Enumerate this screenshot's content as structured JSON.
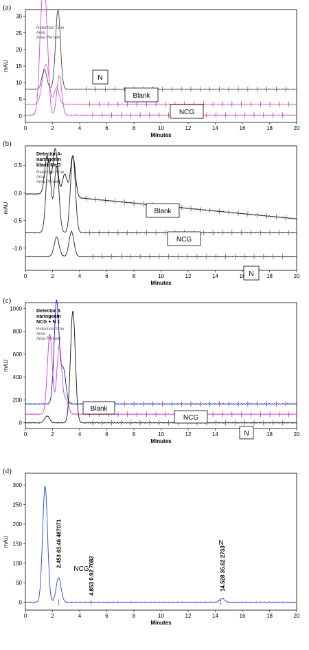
{
  "chart_data": [
    {
      "panel_label": "(a)",
      "type": "line",
      "xlabel": "Minutes",
      "ylabel": "mAU",
      "xlim": [
        0,
        20
      ],
      "ylim": [
        -2,
        32
      ],
      "xticks": [
        0,
        2,
        4,
        6,
        8,
        10,
        12,
        14,
        16,
        18,
        20
      ],
      "yticks": [
        0,
        5,
        10,
        15,
        20,
        25,
        30
      ],
      "legend_lines": [
        "Retention Time",
        "Area",
        "Area Percent"
      ],
      "boxes": [
        "N",
        "Blank",
        "NCG"
      ],
      "series": [
        {
          "name": "N",
          "color": "#444444",
          "baseline": 8,
          "peaks": [
            [
              1.4,
              6
            ],
            [
              2.4,
              24
            ]
          ]
        },
        {
          "name": "Blank",
          "color": "#cc66cc",
          "baseline": 3.5,
          "peaks": [
            [
              1.3,
              6
            ],
            [
              1.6,
              10
            ],
            [
              2.3,
              5
            ]
          ]
        },
        {
          "name": "NCG",
          "color": "#dd44dd",
          "baseline": 0.2,
          "peaks": [
            [
              1.2,
              27
            ],
            [
              1.5,
              28
            ],
            [
              2.5,
              12
            ]
          ]
        }
      ]
    },
    {
      "panel_label": "(b)",
      "type": "line",
      "xlabel": "Minutes",
      "ylabel": "mAU",
      "xlim": [
        0,
        20
      ],
      "ylim": [
        -1.4,
        0.85
      ],
      "xticks": [
        0,
        2,
        4,
        6,
        8,
        10,
        12,
        14,
        16,
        18,
        20
      ],
      "yticks": [
        -1.0,
        -0.5,
        0.0,
        0.5
      ],
      "ytick_labels": [
        "-1.0",
        "-0.5",
        "0.0",
        "0.5"
      ],
      "legend_title": [
        "Detector A-",
        "naringenin",
        "blank MeO"
      ],
      "legend_lines": [
        "Retention Time",
        "Area",
        "Area Percent"
      ],
      "boxes": [
        "Blank",
        "NCG",
        "N"
      ],
      "series": [
        {
          "name": "Blank",
          "color": "#111111",
          "baseline_start": -0.02,
          "baseline_end": -0.47,
          "peaks": [
            [
              1.6,
              0.7
            ],
            [
              2.2,
              0.85
            ],
            [
              2.9,
              0.4
            ],
            [
              3.5,
              0.75
            ]
          ]
        },
        {
          "name": "NCG",
          "color": "#222222",
          "baseline": -0.72,
          "peaks": [
            [
              1.7,
              1.3
            ],
            [
              2.3,
              1.2
            ],
            [
              3.5,
              1.4
            ]
          ]
        },
        {
          "name": "N",
          "color": "#222222",
          "baseline": -1.15,
          "peaks": [
            [
              2.3,
              0.35
            ],
            [
              3.4,
              0.45
            ]
          ]
        }
      ]
    },
    {
      "panel_label": "(c)",
      "type": "line",
      "xlabel": "Minutes",
      "ylabel": "mAU",
      "xlim": [
        0,
        20
      ],
      "ylim": [
        -50,
        1050
      ],
      "xticks": [
        0,
        2,
        4,
        6,
        8,
        10,
        12,
        14,
        16,
        18,
        20
      ],
      "yticks": [
        0,
        200,
        400,
        600,
        800,
        1000
      ],
      "legend_title": [
        "Detector A",
        "naringenin",
        "NCG + N 1"
      ],
      "legend_lines": [
        "Retention Time",
        "Area",
        "Area Percent"
      ],
      "boxes": [
        "Blank",
        "NCG",
        "N"
      ],
      "series": [
        {
          "name": "Blank",
          "color": "#1111cc",
          "baseline": 165,
          "peaks": [
            [
              2.3,
              900
            ],
            [
              2.8,
              300
            ]
          ]
        },
        {
          "name": "NCG",
          "color": "#dd33dd",
          "baseline": 75,
          "peaks": [
            [
              1.8,
              700
            ],
            [
              2.5,
              600
            ],
            [
              3.0,
              120
            ]
          ]
        },
        {
          "name": "N",
          "color": "#111111",
          "baseline": 0,
          "peaks": [
            [
              1.6,
              60
            ],
            [
              3.5,
              980
            ]
          ]
        }
      ]
    },
    {
      "panel_label": "(d)",
      "type": "line",
      "xlabel": "Minutes",
      "ylabel": "mAU",
      "xlim": [
        0,
        20
      ],
      "ylim": [
        -20,
        330
      ],
      "xticks": [
        0,
        2,
        4,
        6,
        8,
        10,
        12,
        14,
        16,
        18,
        20
      ],
      "yticks": [
        0,
        50,
        100,
        150,
        200,
        250,
        300
      ],
      "series": [
        {
          "name": "",
          "color": "#2244cc",
          "baseline": 0,
          "peaks": [
            [
              1.45,
              298
            ],
            [
              2.45,
              63
            ],
            [
              14.5,
              10
            ]
          ]
        }
      ],
      "annotations": [
        {
          "text": "2.453  63.46  487071",
          "x": 2.45
        },
        {
          "text": "4.853  0.92  7082",
          "x": 4.85
        },
        {
          "text": "14.528  35.62  2733",
          "x": 14.53
        }
      ],
      "boxes": [
        "NCG",
        "N"
      ]
    }
  ]
}
